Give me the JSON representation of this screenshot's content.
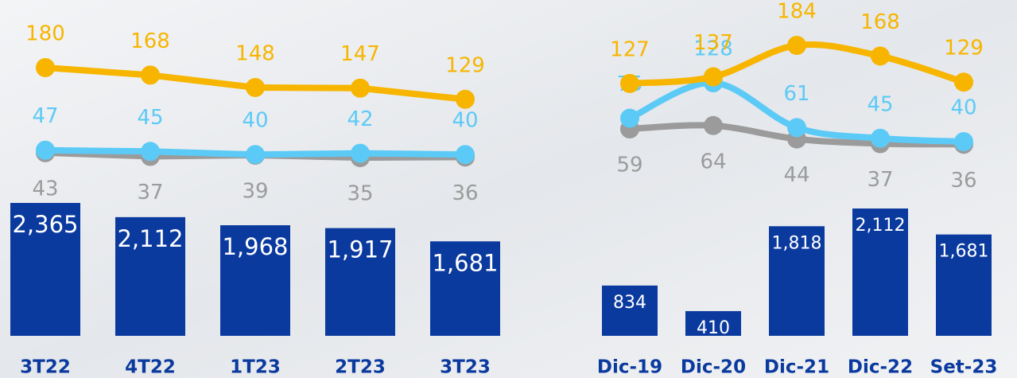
{
  "chart_data": [
    {
      "type": "bar_line",
      "categories": [
        "3T22",
        "4T22",
        "1T23",
        "2T23",
        "3T23"
      ],
      "values": [
        2365,
        2112,
        1968,
        1917,
        1681
      ],
      "value_labels": [
        "2,365",
        "2,112",
        "1,968",
        "1,917",
        "1,681"
      ],
      "color": "#0b3a9f",
      "smooth": false,
      "series": [
        {
          "color": "#f7b500",
          "values": [
            180,
            168,
            148,
            147,
            129
          ],
          "label_side": "above"
        },
        {
          "color": "#5ccaf6",
          "values": [
            47,
            45,
            40,
            42,
            40
          ],
          "label_side": "above"
        },
        {
          "color": "#9b9b9b",
          "values": [
            43,
            37,
            39,
            35,
            36
          ],
          "label_side": "below"
        }
      ]
    },
    {
      "type": "bar_line",
      "categories": [
        "Dic-19",
        "Dic-20",
        "Dic-21",
        "Dic-22",
        "Set-23"
      ],
      "values": [
        834,
        410,
        1818,
        2112,
        1681
      ],
      "value_labels": [
        "834",
        "410",
        "1,818",
        "2,112",
        "1,681"
      ],
      "color": "#0b3a9f",
      "smooth": true,
      "series": [
        {
          "color": "#f7b500",
          "values": [
            127,
            137,
            184,
            168,
            129
          ],
          "label_side": "above"
        },
        {
          "color": "#5ccaf6",
          "values": [
            75,
            128,
            61,
            45,
            40
          ],
          "label_side": "above"
        },
        {
          "color": "#9b9b9b",
          "values": [
            59,
            64,
            44,
            37,
            36
          ],
          "label_side": "below"
        }
      ]
    }
  ]
}
